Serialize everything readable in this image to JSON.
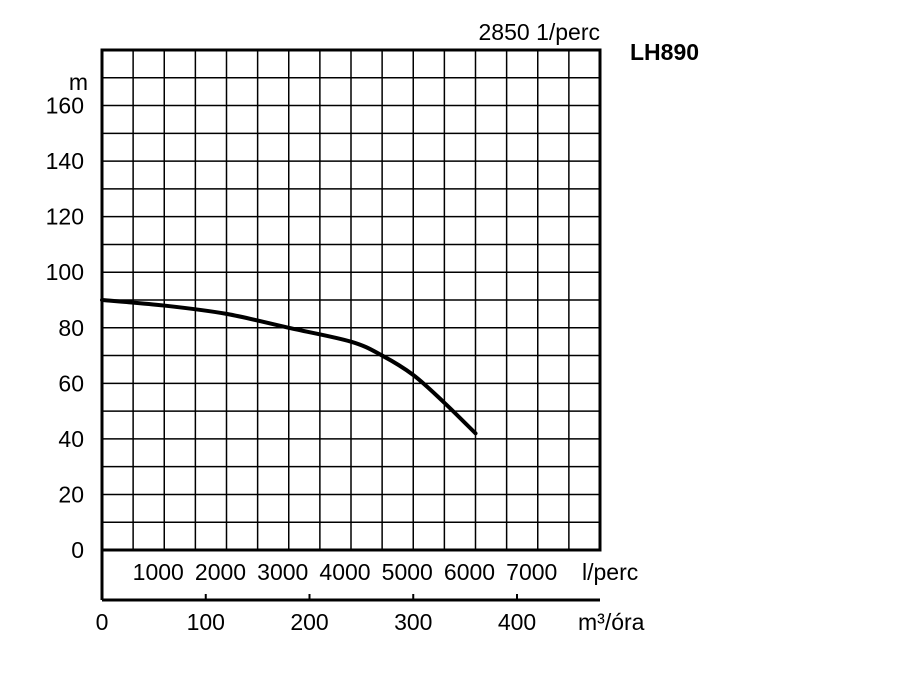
{
  "chart_data": {
    "type": "line",
    "speed_label": "2850 1/perc",
    "model_label": "LH890",
    "y_unit": "m",
    "y_range": [
      0,
      180
    ],
    "y_ticks": [
      "0",
      "20",
      "40",
      "60",
      "80",
      "100",
      "120",
      "140",
      "160"
    ],
    "x_range": [
      0,
      8000
    ],
    "x_ticks": [
      "1000",
      "2000",
      "3000",
      "4000",
      "5000",
      "6000",
      "7000"
    ],
    "x_unit": "l/perc",
    "x2_ticks": [
      "0",
      "100",
      "200",
      "300",
      "400"
    ],
    "x2_unit": "m³/óra",
    "grid": true,
    "series": [
      {
        "x": [
          0,
          1000,
          2000,
          3000,
          4000,
          4500,
          5000,
          5500,
          6000
        ],
        "y": [
          90,
          88,
          85,
          80,
          75,
          70,
          63,
          53,
          42
        ]
      }
    ]
  }
}
